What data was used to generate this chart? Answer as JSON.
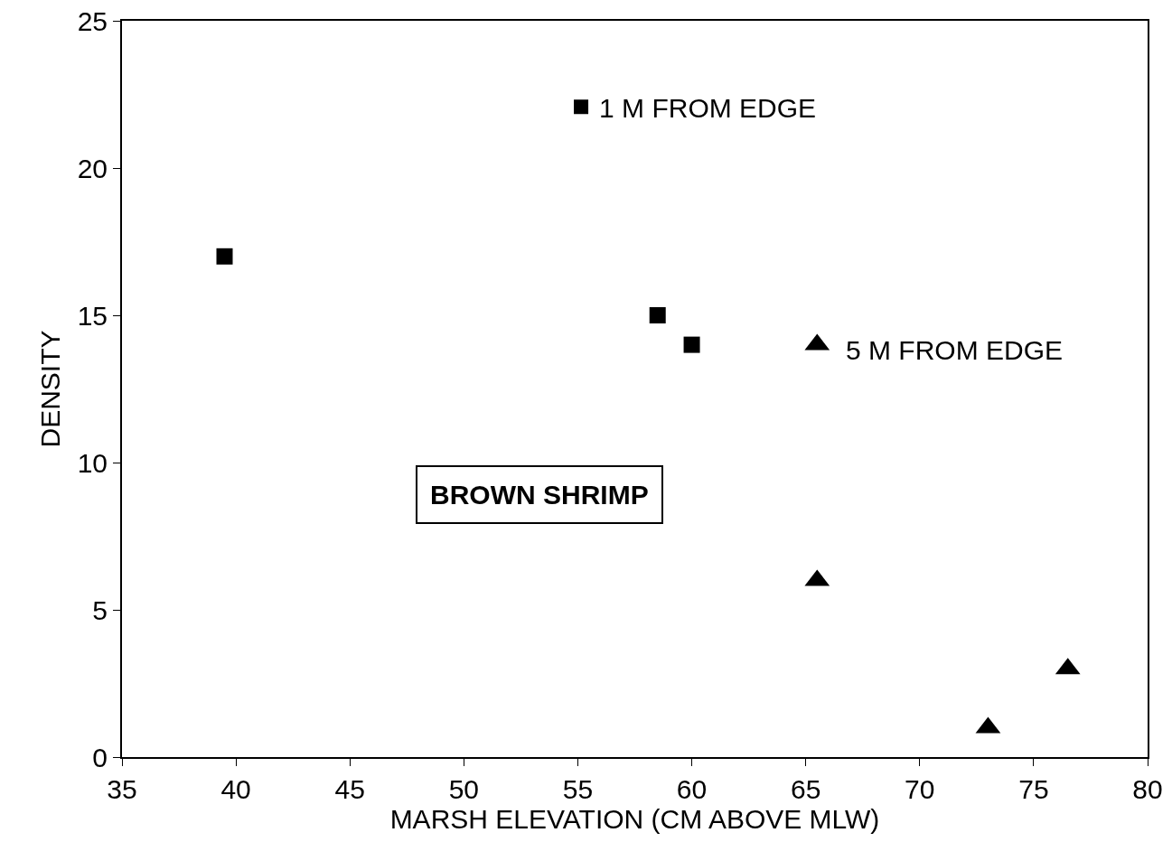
{
  "chart_data": {
    "type": "scatter",
    "xlabel": "MARSH ELEVATION (CM ABOVE MLW)",
    "ylabel": "DENSITY",
    "series": [
      {
        "name": "1 M FROM EDGE",
        "color": "#000000",
        "marker": "square",
        "x": [
          39.5,
          58.5,
          60
        ],
        "values": [
          17,
          15,
          14
        ]
      },
      {
        "name": "5 M FROM EDGE",
        "color": "#000000",
        "marker": "triangle",
        "x": [
          65.5,
          65.5,
          73,
          76.5
        ],
        "values": [
          14,
          6,
          1,
          3
        ]
      }
    ],
    "annotations": [
      "BROWN SHRIMP"
    ],
    "xlim": [
      35,
      80
    ],
    "xticks": [
      35,
      40,
      45,
      50,
      55,
      60,
      65,
      70,
      75,
      80
    ],
    "ylim": [
      0,
      25
    ],
    "yticks": [
      0,
      5,
      10,
      15,
      20,
      25
    ],
    "grid": false,
    "legend": "top"
  }
}
